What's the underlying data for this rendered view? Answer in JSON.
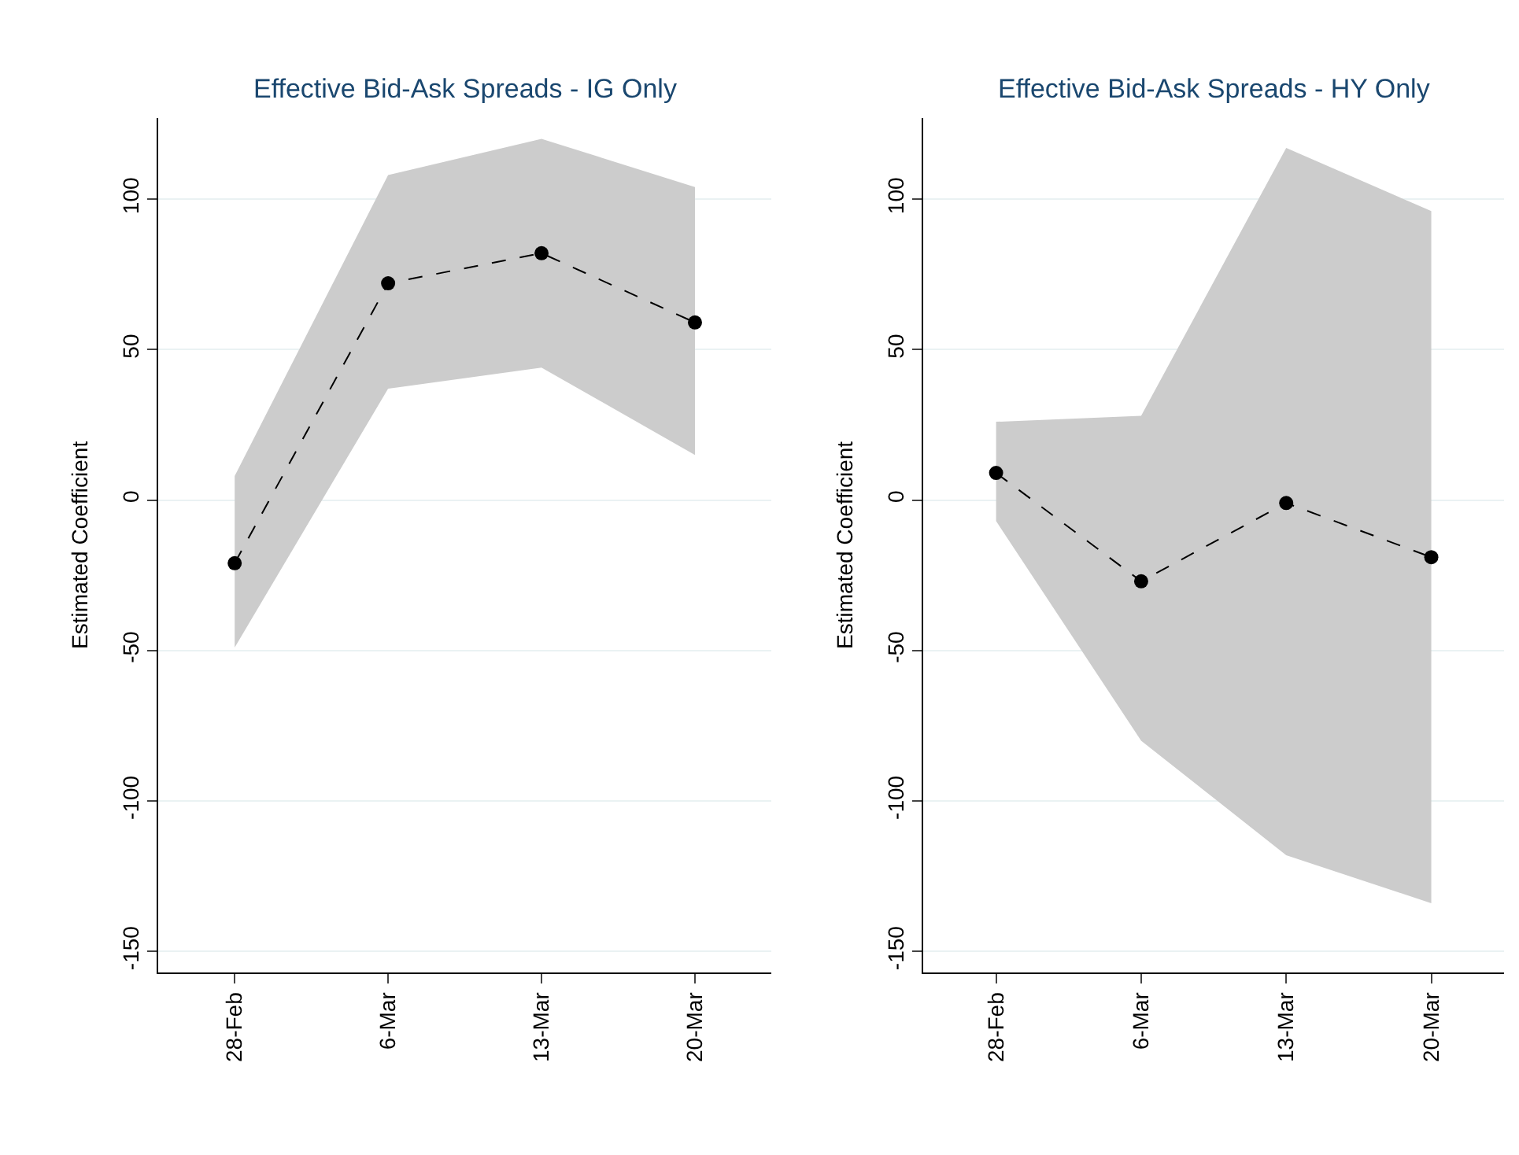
{
  "chart_data": [
    {
      "type": "line",
      "title": "Effective Bid-Ask Spreads - IG Only",
      "ylabel": "Estimated Coefficient",
      "categories": [
        "28-Feb",
        "6-Mar",
        "13-Mar",
        "20-Mar"
      ],
      "ylim": [
        -157,
        127
      ],
      "yticks": [
        -150,
        -100,
        -50,
        0,
        50,
        100
      ],
      "grid": "y",
      "marker": "circle",
      "line_style": "dashed",
      "series": [
        {
          "color": "#000000",
          "values": [
            -21,
            72,
            82,
            59
          ],
          "lower": [
            -49,
            37,
            44,
            15
          ],
          "upper": [
            8,
            108,
            120,
            104
          ]
        }
      ]
    },
    {
      "type": "line",
      "title": "Effective Bid-Ask Spreads - HY Only",
      "ylabel": "Estimated Coefficient",
      "categories": [
        "28-Feb",
        "6-Mar",
        "13-Mar",
        "20-Mar"
      ],
      "ylim": [
        -157,
        127
      ],
      "yticks": [
        -150,
        -100,
        -50,
        0,
        50,
        100
      ],
      "grid": "y",
      "marker": "circle",
      "line_style": "dashed",
      "series": [
        {
          "color": "#000000",
          "values": [
            9,
            -27,
            -1,
            -19
          ],
          "lower": [
            -7,
            -80,
            -118,
            -134
          ],
          "upper": [
            26,
            28,
            117,
            96
          ]
        }
      ]
    }
  ]
}
